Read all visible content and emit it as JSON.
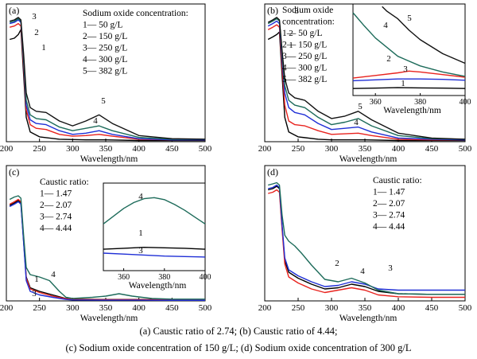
{
  "captions": [
    "(a)  Caustic ratio of 2.74; (b) Caustic ratio of 4.44;",
    "(c) Sodium oxide concentration of 150 g/L; (d) Sodium oxide concentration of 300 g/L"
  ],
  "colors": {
    "series1": "#000000",
    "series2": "#e8231e",
    "series3": "#1f2fd6",
    "series4": "#1d6b5a",
    "series5": "#111111",
    "inset_c_blue": "#1f2fd6"
  },
  "chart_data": [
    {
      "panel": "a",
      "label": "(a)",
      "type": "line",
      "xlabel": "Wavelength/nm",
      "ylabel": "",
      "xlim": [
        200,
        500
      ],
      "xticks": [
        200,
        250,
        300,
        350,
        400,
        450,
        500
      ],
      "grid": false,
      "legend": {
        "title": "Sodium oxide concentration:",
        "placement": "top-right",
        "items": [
          "1— 50 g/L",
          "2— 150 g/L",
          "3— 250 g/L",
          "4— 300 g/L",
          "5— 382 g/L"
        ]
      },
      "curve_labels": [
        "1",
        "2",
        "3",
        "4",
        "5"
      ],
      "series": [
        {
          "id": "1",
          "x": [
            205,
            212,
            218,
            222,
            226,
            230,
            236,
            250,
            280,
            320,
            350,
            400,
            450,
            500
          ],
          "y": [
            0.84,
            0.85,
            0.88,
            0.92,
            0.55,
            0.2,
            0.08,
            0.04,
            0.02,
            0.015,
            0.015,
            0.01,
            0.01,
            0.01
          ]
        },
        {
          "id": "2",
          "x": [
            205,
            212,
            218,
            222,
            226,
            230,
            236,
            245,
            260,
            280,
            300,
            320,
            340,
            360,
            400,
            450,
            500
          ],
          "y": [
            0.94,
            0.95,
            0.97,
            0.95,
            0.62,
            0.26,
            0.14,
            0.11,
            0.1,
            0.06,
            0.045,
            0.05,
            0.06,
            0.045,
            0.02,
            0.015,
            0.015
          ]
        },
        {
          "id": "3",
          "x": [
            205,
            212,
            218,
            222,
            226,
            230,
            236,
            245,
            260,
            280,
            300,
            320,
            340,
            360,
            400,
            450,
            500
          ],
          "y": [
            0.97,
            0.98,
            1.0,
            0.98,
            0.66,
            0.3,
            0.18,
            0.15,
            0.14,
            0.09,
            0.06,
            0.07,
            0.09,
            0.06,
            0.025,
            0.015,
            0.015
          ]
        },
        {
          "id": "4",
          "x": [
            205,
            212,
            218,
            222,
            226,
            230,
            236,
            245,
            260,
            280,
            300,
            320,
            340,
            360,
            400,
            450,
            500
          ],
          "y": [
            0.98,
            0.99,
            1.01,
            0.99,
            0.68,
            0.34,
            0.22,
            0.19,
            0.18,
            0.12,
            0.09,
            0.11,
            0.13,
            0.09,
            0.035,
            0.02,
            0.02
          ]
        },
        {
          "id": "5",
          "x": [
            205,
            212,
            218,
            222,
            226,
            230,
            236,
            245,
            260,
            280,
            300,
            320,
            340,
            360,
            400,
            450,
            500
          ],
          "y": [
            0.99,
            1.0,
            1.02,
            1.0,
            0.72,
            0.4,
            0.28,
            0.25,
            0.24,
            0.17,
            0.13,
            0.17,
            0.22,
            0.15,
            0.05,
            0.025,
            0.02
          ]
        }
      ]
    },
    {
      "panel": "b",
      "label": "(b)",
      "type": "line",
      "xlabel": "Wavelength/nm",
      "ylabel": "",
      "xlim": [
        200,
        500
      ],
      "xticks": [
        200,
        250,
        300,
        350,
        400,
        450,
        500
      ],
      "grid": false,
      "legend": {
        "title": "Sodium oxide\nconcentration:",
        "placement": "top-left",
        "items": [
          "1— 50 g/L",
          "2— 150 g/L",
          "3— 250 g/L",
          "4— 300 g/L",
          "5— 382 g/L"
        ]
      },
      "curve_labels": [
        "1",
        "2",
        "3",
        "4",
        "5"
      ],
      "series": [
        {
          "id": "1",
          "x": [
            205,
            212,
            218,
            222,
            226,
            230,
            236,
            250,
            280,
            300,
            350,
            400,
            450,
            500
          ],
          "y": [
            0.84,
            0.86,
            0.88,
            0.9,
            0.55,
            0.2,
            0.08,
            0.04,
            0.02,
            0.015,
            0.015,
            0.01,
            0.01,
            0.01
          ]
        },
        {
          "id": "2",
          "x": [
            205,
            212,
            218,
            222,
            226,
            230,
            236,
            245,
            260,
            280,
            300,
            320,
            340,
            360,
            400,
            450,
            500
          ],
          "y": [
            0.92,
            0.94,
            0.96,
            0.94,
            0.62,
            0.3,
            0.17,
            0.14,
            0.13,
            0.09,
            0.06,
            0.065,
            0.07,
            0.05,
            0.02,
            0.015,
            0.015
          ]
        },
        {
          "id": "3",
          "x": [
            205,
            212,
            218,
            222,
            226,
            230,
            236,
            245,
            260,
            280,
            300,
            320,
            340,
            360,
            400,
            450,
            500
          ],
          "y": [
            0.95,
            0.97,
            0.99,
            0.97,
            0.68,
            0.4,
            0.28,
            0.24,
            0.22,
            0.15,
            0.1,
            0.11,
            0.12,
            0.08,
            0.03,
            0.02,
            0.015
          ]
        },
        {
          "id": "4",
          "x": [
            205,
            212,
            218,
            222,
            226,
            230,
            236,
            245,
            260,
            280,
            300,
            320,
            340,
            360,
            400,
            450,
            500
          ],
          "y": [
            0.97,
            0.99,
            1.01,
            0.99,
            0.72,
            0.46,
            0.34,
            0.3,
            0.28,
            0.2,
            0.14,
            0.16,
            0.19,
            0.13,
            0.05,
            0.025,
            0.02
          ]
        },
        {
          "id": "5",
          "x": [
            205,
            212,
            218,
            222,
            226,
            230,
            236,
            245,
            260,
            280,
            300,
            320,
            340,
            360,
            400,
            450,
            500
          ],
          "y": [
            0.98,
            1.0,
            1.02,
            1.0,
            0.75,
            0.52,
            0.4,
            0.36,
            0.34,
            0.25,
            0.19,
            0.21,
            0.25,
            0.18,
            0.07,
            0.03,
            0.02
          ]
        }
      ],
      "inset": {
        "xlim": [
          350,
          400
        ],
        "xticks": [
          360,
          380,
          400
        ],
        "xlabel": "Wavelength/nm",
        "curve_labels": [
          "1",
          "2",
          "3",
          "4",
          "5"
        ],
        "series": [
          {
            "id": "1",
            "x": [
              350,
              360,
              370,
              380,
              390,
              400
            ],
            "y": [
              0.08,
              0.085,
              0.09,
              0.088,
              0.085,
              0.08
            ]
          },
          {
            "id": "2",
            "x": [
              350,
              360,
              370,
              375,
              380,
              390,
              400
            ],
            "y": [
              0.2,
              0.23,
              0.26,
              0.28,
              0.27,
              0.24,
              0.21
            ]
          },
          {
            "id": "3",
            "x": [
              350,
              360,
              370,
              380,
              390,
              400
            ],
            "y": [
              0.17,
              0.18,
              0.19,
              0.19,
              0.185,
              0.175
            ]
          },
          {
            "id": "4",
            "x": [
              350,
              355,
              360,
              370,
              380,
              390,
              400
            ],
            "y": [
              0.95,
              0.8,
              0.66,
              0.45,
              0.34,
              0.27,
              0.22
            ]
          },
          {
            "id": "5",
            "x": [
              363,
              365,
              370,
              375,
              380,
              390,
              400
            ],
            "y": [
              1.02,
              0.97,
              0.88,
              0.75,
              0.64,
              0.48,
              0.37
            ]
          }
        ]
      }
    },
    {
      "panel": "c",
      "label": "(c)",
      "type": "line",
      "xlabel": "Wavelength/nm",
      "ylabel": "",
      "xlim": [
        200,
        500
      ],
      "xticks": [
        200,
        250,
        300,
        350,
        400,
        450,
        500
      ],
      "grid": false,
      "legend": {
        "title": "Caustic ratio:",
        "placement": "top-left",
        "items": [
          "1— 1.47",
          "2— 2.07",
          "3— 2.74",
          "4— 4.44"
        ]
      },
      "curve_labels": [
        "1",
        "3",
        "4"
      ],
      "series": [
        {
          "id": "1",
          "x": [
            205,
            212,
            218,
            222,
            226,
            230,
            236,
            250,
            270,
            290,
            300,
            350,
            400,
            450,
            500
          ],
          "y": [
            0.8,
            0.82,
            0.84,
            0.82,
            0.5,
            0.2,
            0.11,
            0.08,
            0.05,
            0.02,
            0.015,
            0.012,
            0.012,
            0.01,
            0.01
          ]
        },
        {
          "id": "2",
          "x": [
            205,
            212,
            218,
            222,
            226,
            230,
            236,
            250,
            270,
            290,
            300,
            350,
            400,
            450,
            500
          ],
          "y": [
            0.81,
            0.83,
            0.85,
            0.83,
            0.51,
            0.19,
            0.1,
            0.07,
            0.04,
            0.018,
            0.012,
            0.01,
            0.01,
            0.01,
            0.01
          ]
        },
        {
          "id": "3",
          "x": [
            205,
            212,
            218,
            222,
            226,
            230,
            236,
            250,
            270,
            290,
            300,
            350,
            400,
            450,
            500
          ],
          "y": [
            0.79,
            0.81,
            0.83,
            0.81,
            0.49,
            0.17,
            0.08,
            0.05,
            0.03,
            0.012,
            0.008,
            0.006,
            0.006,
            0.005,
            0.005
          ]
        },
        {
          "id": "4",
          "x": [
            205,
            212,
            218,
            222,
            226,
            230,
            236,
            250,
            265,
            280,
            290,
            300,
            330,
            350,
            370,
            390,
            420,
            450,
            500
          ],
          "y": [
            0.85,
            0.87,
            0.88,
            0.86,
            0.55,
            0.28,
            0.22,
            0.2,
            0.17,
            0.08,
            0.03,
            0.02,
            0.03,
            0.04,
            0.06,
            0.04,
            0.02,
            0.015,
            0.015
          ]
        }
      ],
      "inset": {
        "xlim": [
          350,
          400
        ],
        "xticks": [
          360,
          380,
          400
        ],
        "xlabel": "Wavelength/nm",
        "curve_labels": [
          "1",
          "3",
          "4"
        ],
        "series": [
          {
            "id": "1",
            "x": [
              350,
              360,
              370,
              380,
              390,
              400
            ],
            "y": [
              0.22,
              0.23,
              0.24,
              0.235,
              0.23,
              0.22
            ]
          },
          {
            "id": "3",
            "x": [
              350,
              360,
              370,
              380,
              390,
              400
            ],
            "y": [
              0.18,
              0.17,
              0.16,
              0.15,
              0.145,
              0.14
            ]
          },
          {
            "id": "4",
            "x": [
              350,
              355,
              360,
              365,
              370,
              375,
              380,
              385,
              390,
              395,
              400
            ],
            "y": [
              0.48,
              0.56,
              0.64,
              0.7,
              0.74,
              0.75,
              0.73,
              0.68,
              0.62,
              0.55,
              0.48
            ]
          }
        ]
      }
    },
    {
      "panel": "d",
      "label": "(d)",
      "type": "line",
      "xlabel": "Wavelength/nm",
      "ylabel": "",
      "xlim": [
        200,
        500
      ],
      "xticks": [
        200,
        250,
        300,
        350,
        400,
        450,
        500
      ],
      "grid": false,
      "legend": {
        "title": "Caustic ratio:",
        "placement": "top-right",
        "items": [
          "1— 1.47",
          "2— 2.07",
          "3— 2.74",
          "4— 4.44"
        ]
      },
      "curve_labels": [
        "2",
        "3",
        "4"
      ],
      "series": [
        {
          "id": "1",
          "x": [
            205,
            212,
            218,
            222,
            226,
            230,
            236,
            250,
            270,
            290,
            310,
            330,
            350,
            370,
            400,
            450,
            500
          ],
          "y": [
            0.93,
            0.94,
            0.96,
            0.94,
            0.62,
            0.34,
            0.24,
            0.19,
            0.14,
            0.1,
            0.11,
            0.14,
            0.12,
            0.08,
            0.06,
            0.055,
            0.055
          ]
        },
        {
          "id": "2",
          "x": [
            205,
            212,
            218,
            222,
            226,
            230,
            236,
            250,
            270,
            290,
            310,
            330,
            350,
            370,
            400,
            450,
            500
          ],
          "y": [
            0.9,
            0.91,
            0.93,
            0.91,
            0.6,
            0.31,
            0.2,
            0.15,
            0.1,
            0.07,
            0.09,
            0.11,
            0.09,
            0.05,
            0.035,
            0.03,
            0.03
          ]
        },
        {
          "id": "3",
          "x": [
            205,
            212,
            218,
            222,
            226,
            230,
            236,
            250,
            270,
            290,
            310,
            330,
            350,
            370,
            400,
            450,
            500
          ],
          "y": [
            0.94,
            0.95,
            0.97,
            0.95,
            0.64,
            0.36,
            0.26,
            0.21,
            0.16,
            0.12,
            0.13,
            0.16,
            0.14,
            0.1,
            0.09,
            0.09,
            0.09
          ]
        },
        {
          "id": "4",
          "x": [
            205,
            212,
            218,
            222,
            226,
            230,
            236,
            245,
            255,
            270,
            290,
            310,
            330,
            350,
            370,
            400,
            450,
            500
          ],
          "y": [
            0.97,
            0.98,
            0.99,
            0.97,
            0.72,
            0.55,
            0.5,
            0.46,
            0.4,
            0.3,
            0.18,
            0.16,
            0.19,
            0.15,
            0.09,
            0.06,
            0.055,
            0.055
          ]
        }
      ]
    }
  ]
}
